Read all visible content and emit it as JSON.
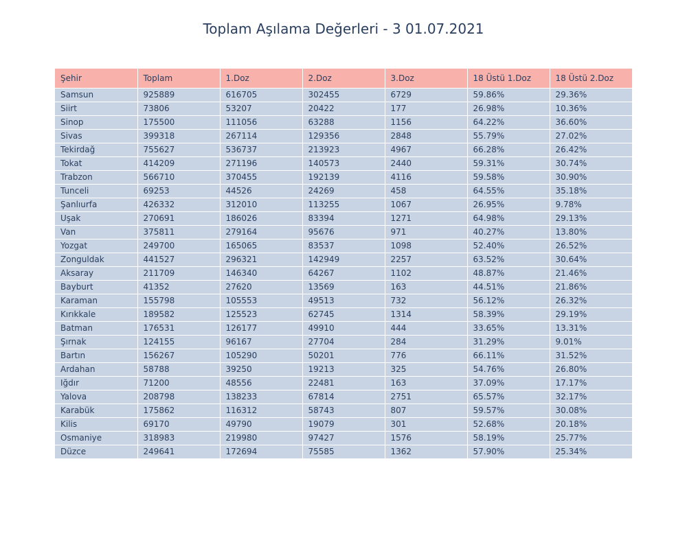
{
  "chart_data": {
    "type": "table",
    "title": "Toplam Aşılama Değerleri - 3 01.07.2021",
    "header_color": "#f8b1ab",
    "cell_color": "#c8d4e3",
    "columns": [
      "Şehir",
      "Toplam",
      "1.Doz",
      "2.Doz",
      "3.Doz",
      "18 Üstü 1.Doz",
      "18 Üstü 2.Doz"
    ],
    "rows": [
      [
        "Samsun",
        "925889",
        "616705",
        "302455",
        "6729",
        "59.86%",
        "29.36%"
      ],
      [
        "Siirt",
        "73806",
        "53207",
        "20422",
        "177",
        "26.98%",
        "10.36%"
      ],
      [
        "Sinop",
        "175500",
        "111056",
        "63288",
        "1156",
        "64.22%",
        "36.60%"
      ],
      [
        "Sivas",
        "399318",
        "267114",
        "129356",
        "2848",
        "55.79%",
        "27.02%"
      ],
      [
        "Tekirdağ",
        "755627",
        "536737",
        "213923",
        "4967",
        "66.28%",
        "26.42%"
      ],
      [
        "Tokat",
        "414209",
        "271196",
        "140573",
        "2440",
        "59.31%",
        "30.74%"
      ],
      [
        "Trabzon",
        "566710",
        "370455",
        "192139",
        "4116",
        "59.58%",
        "30.90%"
      ],
      [
        "Tunceli",
        "69253",
        "44526",
        "24269",
        "458",
        "64.55%",
        "35.18%"
      ],
      [
        "Şanlıurfa",
        "426332",
        "312010",
        "113255",
        "1067",
        "26.95%",
        "9.78%"
      ],
      [
        "Uşak",
        "270691",
        "186026",
        "83394",
        "1271",
        "64.98%",
        "29.13%"
      ],
      [
        "Van",
        "375811",
        "279164",
        "95676",
        "971",
        "40.27%",
        "13.80%"
      ],
      [
        "Yozgat",
        "249700",
        "165065",
        "83537",
        "1098",
        "52.40%",
        "26.52%"
      ],
      [
        "Zonguldak",
        "441527",
        "296321",
        "142949",
        "2257",
        "63.52%",
        "30.64%"
      ],
      [
        "Aksaray",
        "211709",
        "146340",
        "64267",
        "1102",
        "48.87%",
        "21.46%"
      ],
      [
        "Bayburt",
        "41352",
        "27620",
        "13569",
        "163",
        "44.51%",
        "21.86%"
      ],
      [
        "Karaman",
        "155798",
        "105553",
        "49513",
        "732",
        "56.12%",
        "26.32%"
      ],
      [
        "Kırıkkale",
        "189582",
        "125523",
        "62745",
        "1314",
        "58.39%",
        "29.19%"
      ],
      [
        "Batman",
        "176531",
        "126177",
        "49910",
        "444",
        "33.65%",
        "13.31%"
      ],
      [
        "Şırnak",
        "124155",
        "96167",
        "27704",
        "284",
        "31.29%",
        "9.01%"
      ],
      [
        "Bartın",
        "156267",
        "105290",
        "50201",
        "776",
        "66.11%",
        "31.52%"
      ],
      [
        "Ardahan",
        "58788",
        "39250",
        "19213",
        "325",
        "54.76%",
        "26.80%"
      ],
      [
        "Iğdır",
        "71200",
        "48556",
        "22481",
        "163",
        "37.09%",
        "17.17%"
      ],
      [
        "Yalova",
        "208798",
        "138233",
        "67814",
        "2751",
        "65.57%",
        "32.17%"
      ],
      [
        "Karabük",
        "175862",
        "116312",
        "58743",
        "807",
        "59.57%",
        "30.08%"
      ],
      [
        "Kilis",
        "69170",
        "49790",
        "19079",
        "301",
        "52.68%",
        "20.18%"
      ],
      [
        "Osmaniye",
        "318983",
        "219980",
        "97427",
        "1576",
        "58.19%",
        "25.77%"
      ],
      [
        "Düzce",
        "249641",
        "172694",
        "75585",
        "1362",
        "57.90%",
        "25.34%"
      ]
    ]
  }
}
